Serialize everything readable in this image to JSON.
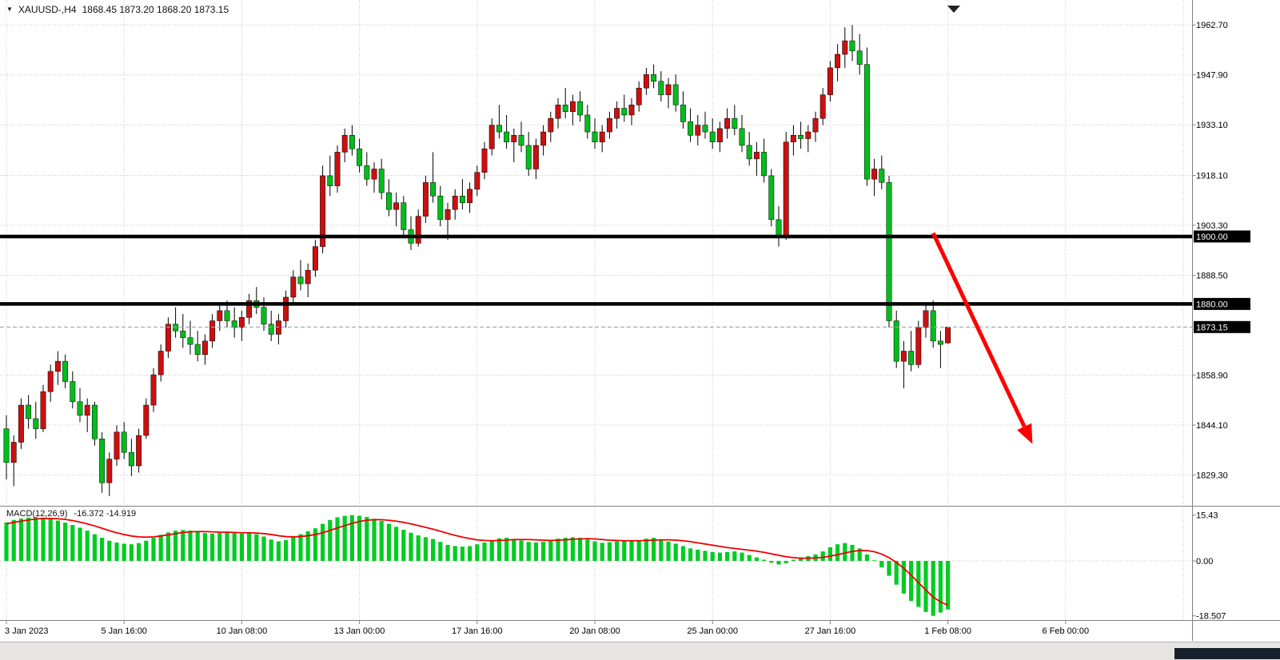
{
  "header": {
    "symbol_timeframe": "XAUUSD-,H4",
    "ohlc_text": "1868.45 1873.20 1868.20 1873.15"
  },
  "macd_panel": {
    "label": "MACD(12,26,9)",
    "values_text": "-16.372 -14.919"
  },
  "price_axis": {
    "ticks": [
      "1962.70",
      "1947.90",
      "1933.10",
      "1918.10",
      "1903.30",
      "1888.50",
      "1858.90",
      "1844.10",
      "1829.30"
    ]
  },
  "macd_axis": {
    "ticks": [
      {
        "text": "15.43",
        "value": 15.43
      },
      {
        "text": "0.00",
        "value": 0
      },
      {
        "text": "-18.507",
        "value": -18.507
      }
    ]
  },
  "time_axis": {
    "labels": [
      {
        "text": "3 Jan 2023",
        "bar": 0
      },
      {
        "text": "5 Jan 16:00",
        "bar": 16
      },
      {
        "text": "10 Jan 08:00",
        "bar": 32
      },
      {
        "text": "13 Jan 00:00",
        "bar": 48
      },
      {
        "text": "17 Jan 16:00",
        "bar": 64
      },
      {
        "text": "20 Jan 08:00",
        "bar": 80
      },
      {
        "text": "25 Jan 00:00",
        "bar": 96
      },
      {
        "text": "27 Jan 16:00",
        "bar": 112
      },
      {
        "text": "1 Feb 08:00",
        "bar": 128
      },
      {
        "text": "6 Feb 00:00",
        "bar": 144
      }
    ],
    "extra_gridline_bars": [
      160
    ]
  },
  "levels": [
    {
      "price": 1900.0,
      "tag": "1900.00"
    },
    {
      "price": 1880.0,
      "tag": "1880.00"
    }
  ],
  "bid": {
    "price": 1873.15,
    "tag": "1873.15"
  },
  "arrow": {
    "from_bar": 126,
    "from_price": 1901,
    "to_bar": 139.5,
    "to_price": 1838.5,
    "color": "#ff0000"
  },
  "colors": {
    "bull": "#cc0f0f",
    "bear": "#00bd1c",
    "hist": "#00cc22",
    "signal": "#ee0000",
    "grid": "#c6c6c6",
    "level": "#000000",
    "bid_line": "#9aa4ad",
    "tag_bg": "#000000",
    "tag_fg": "#ffffff",
    "axis_text": "#000000",
    "separator": "#808080",
    "arrow": "#ff0000"
  },
  "chart_data": {
    "type": "candlestick",
    "title": "XAUUSD-,H4",
    "symbol": "XAUUSD-",
    "timeframe": "H4",
    "ohlc_display": {
      "open": 1868.45,
      "high": 1873.2,
      "low": 1868.2,
      "close": 1873.15
    },
    "ylim": [
      1820.4,
      1970.1
    ],
    "y_ticks": [
      1962.7,
      1947.9,
      1933.1,
      1918.1,
      1903.3,
      1888.5,
      1858.9,
      1844.1,
      1829.3
    ],
    "horizontal_levels": [
      1900.0,
      1880.0
    ],
    "current_bid": 1873.15,
    "candles": [
      [
        1843,
        1847,
        1828,
        1833
      ],
      [
        1833,
        1841,
        1826,
        1839
      ],
      [
        1839,
        1852,
        1837,
        1850
      ],
      [
        1850,
        1853,
        1843,
        1846
      ],
      [
        1846,
        1851,
        1840,
        1843
      ],
      [
        1843,
        1856,
        1842,
        1854
      ],
      [
        1854,
        1862,
        1851,
        1860
      ],
      [
        1860,
        1866,
        1856,
        1863
      ],
      [
        1863,
        1865,
        1855,
        1857
      ],
      [
        1857,
        1860,
        1849,
        1851
      ],
      [
        1851,
        1855,
        1845,
        1847
      ],
      [
        1847,
        1852,
        1842,
        1850
      ],
      [
        1850,
        1851,
        1838,
        1840
      ],
      [
        1840,
        1842,
        1824,
        1827
      ],
      [
        1827,
        1836,
        1823,
        1834
      ],
      [
        1834,
        1844,
        1832,
        1842
      ],
      [
        1842,
        1845,
        1834,
        1836
      ],
      [
        1836,
        1840,
        1829,
        1832
      ],
      [
        1832,
        1843,
        1830,
        1841
      ],
      [
        1841,
        1852,
        1840,
        1850
      ],
      [
        1850,
        1861,
        1848,
        1859
      ],
      [
        1859,
        1868,
        1857,
        1866
      ],
      [
        1866,
        1876,
        1864,
        1874
      ],
      [
        1874,
        1879,
        1870,
        1872
      ],
      [
        1872,
        1877,
        1867,
        1870
      ],
      [
        1870,
        1875,
        1865,
        1868
      ],
      [
        1868,
        1872,
        1863,
        1865
      ],
      [
        1865,
        1871,
        1862,
        1869
      ],
      [
        1869,
        1877,
        1867,
        1875
      ],
      [
        1875,
        1880,
        1872,
        1878
      ],
      [
        1878,
        1881,
        1873,
        1875
      ],
      [
        1875,
        1879,
        1870,
        1873
      ],
      [
        1873,
        1878,
        1869,
        1876
      ],
      [
        1876,
        1883,
        1874,
        1881
      ],
      [
        1881,
        1885,
        1877,
        1879
      ],
      [
        1879,
        1882,
        1872,
        1874
      ],
      [
        1874,
        1878,
        1869,
        1871
      ],
      [
        1871,
        1877,
        1868,
        1875
      ],
      [
        1875,
        1884,
        1873,
        1882
      ],
      [
        1882,
        1890,
        1880,
        1888
      ],
      [
        1888,
        1893,
        1884,
        1886
      ],
      [
        1886,
        1892,
        1882,
        1890
      ],
      [
        1890,
        1899,
        1888,
        1897
      ],
      [
        1897,
        1921,
        1895,
        1918
      ],
      [
        1918,
        1924,
        1912,
        1915
      ],
      [
        1915,
        1927,
        1913,
        1925
      ],
      [
        1925,
        1932,
        1922,
        1930
      ],
      [
        1930,
        1933,
        1924,
        1926
      ],
      [
        1926,
        1929,
        1919,
        1921
      ],
      [
        1921,
        1925,
        1915,
        1917
      ],
      [
        1917,
        1922,
        1913,
        1920
      ],
      [
        1920,
        1923,
        1911,
        1913
      ],
      [
        1913,
        1917,
        1906,
        1908
      ],
      [
        1908,
        1913,
        1903,
        1910
      ],
      [
        1910,
        1912,
        1900,
        1902
      ],
      [
        1902,
        1906,
        1896,
        1898
      ],
      [
        1898,
        1908,
        1897,
        1906
      ],
      [
        1906,
        1918,
        1904,
        1916
      ],
      [
        1916,
        1925,
        1910,
        1912
      ],
      [
        1912,
        1915,
        1903,
        1905
      ],
      [
        1905,
        1910,
        1899,
        1908
      ],
      [
        1908,
        1914,
        1905,
        1912
      ],
      [
        1912,
        1917,
        1908,
        1910
      ],
      [
        1910,
        1916,
        1907,
        1914
      ],
      [
        1914,
        1921,
        1912,
        1919
      ],
      [
        1919,
        1928,
        1917,
        1926
      ],
      [
        1926,
        1935,
        1924,
        1933
      ],
      [
        1933,
        1939,
        1929,
        1931
      ],
      [
        1931,
        1936,
        1926,
        1928
      ],
      [
        1928,
        1932,
        1922,
        1930
      ],
      [
        1930,
        1934,
        1925,
        1927
      ],
      [
        1927,
        1931,
        1918,
        1920
      ],
      [
        1920,
        1929,
        1917,
        1927
      ],
      [
        1927,
        1933,
        1924,
        1931
      ],
      [
        1931,
        1937,
        1928,
        1935
      ],
      [
        1935,
        1941,
        1932,
        1939
      ],
      [
        1939,
        1944,
        1935,
        1937
      ],
      [
        1937,
        1942,
        1933,
        1940
      ],
      [
        1940,
        1943,
        1934,
        1936
      ],
      [
        1936,
        1939,
        1929,
        1931
      ],
      [
        1931,
        1935,
        1926,
        1928
      ],
      [
        1928,
        1933,
        1925,
        1931
      ],
      [
        1931,
        1937,
        1929,
        1935
      ],
      [
        1935,
        1940,
        1932,
        1938
      ],
      [
        1938,
        1942,
        1934,
        1936
      ],
      [
        1936,
        1941,
        1933,
        1939
      ],
      [
        1939,
        1946,
        1937,
        1944
      ],
      [
        1944,
        1950,
        1942,
        1948
      ],
      [
        1948,
        1951,
        1944,
        1946
      ],
      [
        1946,
        1949,
        1940,
        1942
      ],
      [
        1942,
        1947,
        1938,
        1945
      ],
      [
        1945,
        1948,
        1937,
        1939
      ],
      [
        1939,
        1943,
        1932,
        1934
      ],
      [
        1934,
        1938,
        1928,
        1930
      ],
      [
        1930,
        1936,
        1927,
        1933
      ],
      [
        1933,
        1937,
        1929,
        1931
      ],
      [
        1931,
        1935,
        1926,
        1928
      ],
      [
        1928,
        1934,
        1925,
        1932
      ],
      [
        1932,
        1938,
        1929,
        1935
      ],
      [
        1935,
        1939,
        1930,
        1932
      ],
      [
        1932,
        1936,
        1925,
        1927
      ],
      [
        1927,
        1931,
        1921,
        1923
      ],
      [
        1923,
        1928,
        1918,
        1925
      ],
      [
        1925,
        1929,
        1916,
        1918
      ],
      [
        1918,
        1920,
        1903,
        1905
      ],
      [
        1905,
        1909,
        1897,
        1900
      ],
      [
        1900,
        1931,
        1899,
        1928
      ],
      [
        1928,
        1933,
        1924,
        1930
      ],
      [
        1930,
        1934,
        1926,
        1929
      ],
      [
        1929,
        1933,
        1925,
        1931
      ],
      [
        1931,
        1937,
        1928,
        1935
      ],
      [
        1935,
        1944,
        1933,
        1942
      ],
      [
        1942,
        1952,
        1940,
        1950
      ],
      [
        1950,
        1957,
        1946,
        1954
      ],
      [
        1954,
        1962,
        1950,
        1958
      ],
      [
        1958,
        1962.7,
        1952,
        1955
      ],
      [
        1955,
        1960,
        1948,
        1951
      ],
      [
        1951,
        1956,
        1915,
        1917
      ],
      [
        1917,
        1923,
        1912,
        1920
      ],
      [
        1920,
        1924,
        1914,
        1916
      ],
      [
        1916,
        1918,
        1873,
        1875
      ],
      [
        1875,
        1878,
        1861,
        1863
      ],
      [
        1863,
        1869,
        1855,
        1866
      ],
      [
        1866,
        1872,
        1860,
        1862
      ],
      [
        1862,
        1875,
        1861,
        1873
      ],
      [
        1873,
        1880,
        1870,
        1878
      ],
      [
        1878,
        1881,
        1867,
        1869
      ],
      [
        1869,
        1872,
        1861,
        1868
      ],
      [
        1868.45,
        1873.2,
        1868.2,
        1873.15
      ]
    ],
    "macd": {
      "params": "12,26,9",
      "current_macd": -16.372,
      "current_signal": -14.919,
      "ylim": [
        -19.93,
        18.31
      ],
      "histogram": [
        13.0,
        13.8,
        14.3,
        14.6,
        14.8,
        14.6,
        14.2,
        13.6,
        12.9,
        12.1,
        11.2,
        10.2,
        9.0,
        7.8,
        6.8,
        6.2,
        5.8,
        5.6,
        6.0,
        6.8,
        7.8,
        8.8,
        9.6,
        10.2,
        10.4,
        10.2,
        9.8,
        9.4,
        9.2,
        9.4,
        9.6,
        9.4,
        9.2,
        9.4,
        9.0,
        8.2,
        7.2,
        6.6,
        7.0,
        8.0,
        9.0,
        10.0,
        11.0,
        12.5,
        13.8,
        14.7,
        15.2,
        15.43,
        15.2,
        14.8,
        14.2,
        13.5,
        12.5,
        11.5,
        10.5,
        9.5,
        8.6,
        8.0,
        7.4,
        6.4,
        5.4,
        5.0,
        4.8,
        5.0,
        5.6,
        6.2,
        7.0,
        7.6,
        7.8,
        7.4,
        6.9,
        6.4,
        6.2,
        6.5,
        7.0,
        7.5,
        7.8,
        8.0,
        7.8,
        7.2,
        6.6,
        6.1,
        6.3,
        6.6,
        6.9,
        6.6,
        7.0,
        7.5,
        7.8,
        7.2,
        6.5,
        5.8,
        5.0,
        4.2,
        3.8,
        3.4,
        3.0,
        2.8,
        3.0,
        3.2,
        2.8,
        2.0,
        1.2,
        0.4,
        -0.6,
        -1.2,
        -0.8,
        0.4,
        1.2,
        1.6,
        2.2,
        3.2,
        4.6,
        5.6,
        6.0,
        5.4,
        4.2,
        2.2,
        0.2,
        -2.2,
        -5.0,
        -8.0,
        -11.0,
        -13.5,
        -15.5,
        -17.2,
        -18.5,
        -17.4,
        -16.372
      ],
      "signal": [
        12.5,
        13.0,
        13.4,
        13.8,
        14.1,
        14.3,
        14.3,
        14.2,
        14.0,
        13.6,
        13.1,
        12.5,
        11.8,
        11.0,
        10.2,
        9.5,
        8.9,
        8.4,
        8.1,
        8.0,
        8.1,
        8.4,
        8.8,
        9.2,
        9.6,
        9.8,
        9.9,
        9.9,
        9.8,
        9.7,
        9.7,
        9.6,
        9.5,
        9.5,
        9.4,
        9.2,
        8.9,
        8.5,
        8.2,
        8.1,
        8.2,
        8.5,
        8.9,
        9.5,
        10.3,
        11.1,
        11.9,
        12.7,
        13.3,
        13.7,
        13.9,
        13.9,
        13.7,
        13.4,
        13.0,
        12.5,
        11.9,
        11.3,
        10.7,
        10.0,
        9.3,
        8.6,
        8.0,
        7.5,
        7.1,
        6.9,
        6.8,
        6.9,
        7.0,
        7.2,
        7.2,
        7.2,
        7.1,
        7.0,
        6.9,
        7.0,
        7.1,
        7.3,
        7.4,
        7.5,
        7.4,
        7.2,
        7.0,
        6.9,
        6.8,
        6.8,
        6.8,
        6.9,
        7.0,
        7.1,
        7.1,
        7.0,
        6.8,
        6.5,
        6.1,
        5.7,
        5.3,
        4.9,
        4.5,
        4.2,
        3.9,
        3.6,
        3.3,
        2.9,
        2.4,
        1.9,
        1.4,
        1.1,
        0.9,
        0.9,
        1.0,
        1.2,
        1.6,
        2.1,
        2.7,
        3.2,
        3.5,
        3.5,
        3.1,
        2.3,
        1.1,
        -0.5,
        -2.5,
        -4.8,
        -7.3,
        -9.8,
        -12.2,
        -13.8,
        -14.919
      ]
    }
  }
}
